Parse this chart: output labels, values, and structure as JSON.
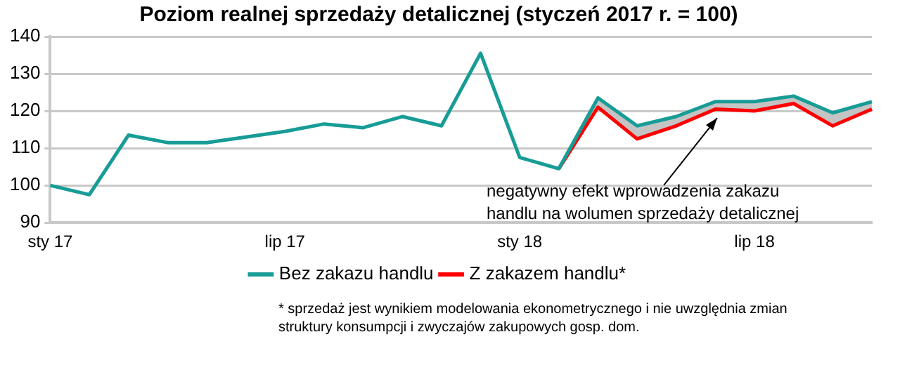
{
  "chart_data": {
    "type": "line",
    "title": "Poziom realnej sprzedaży detalicznej (styczeń 2017 r. = 100)",
    "categories": [
      "sty 17",
      null,
      null,
      null,
      null,
      null,
      "lip 17",
      null,
      null,
      null,
      null,
      null,
      "sty 18",
      null,
      null,
      null,
      null,
      null,
      "lip 18",
      null,
      null,
      null
    ],
    "series": [
      {
        "name": "Bez zakazu handlu",
        "color": "#179c96",
        "values": [
          100,
          97.5,
          113.5,
          111.5,
          111.5,
          113,
          114.5,
          116.5,
          115.5,
          118.5,
          116,
          135.5,
          107.5,
          104.5,
          123.5,
          116,
          118.5,
          122.5,
          122.5,
          124,
          119.5,
          122.5
        ],
        "lower": [
          null,
          null,
          null,
          null,
          null,
          null,
          null,
          null,
          null,
          null,
          null,
          null,
          null,
          104.5,
          121,
          112.5,
          116,
          120.5,
          120,
          122,
          116,
          120.5
        ],
        "upper": [
          null,
          null,
          null,
          null,
          null,
          null,
          null,
          null,
          null,
          null,
          null,
          null,
          null,
          104.5,
          123.5,
          116,
          118.5,
          122.5,
          122.5,
          124,
          119.5,
          122.5
        ]
      },
      {
        "name": "Z zakazem handlu*",
        "color": "#ff0000",
        "values": [
          null,
          null,
          null,
          null,
          null,
          null,
          null,
          null,
          null,
          null,
          null,
          null,
          null,
          104.5,
          121,
          112.5,
          116,
          120.5,
          120,
          122,
          116,
          120.5
        ]
      }
    ],
    "ylim": [
      90,
      140
    ],
    "yticks": [
      90,
      100,
      110,
      120,
      130,
      140
    ],
    "grid": "y",
    "legend": "bottom",
    "annotations": [
      "negatywny efekt wprowadzenia zakazu handlu na wolumen sprzedaży detalicznej",
      "* sprzedaż jest wynikiem modelowania ekonometrycznego i nie uwzględnia zmian struktury konsumpcji i zwyczajów zakupowych gosp. dom."
    ]
  }
}
